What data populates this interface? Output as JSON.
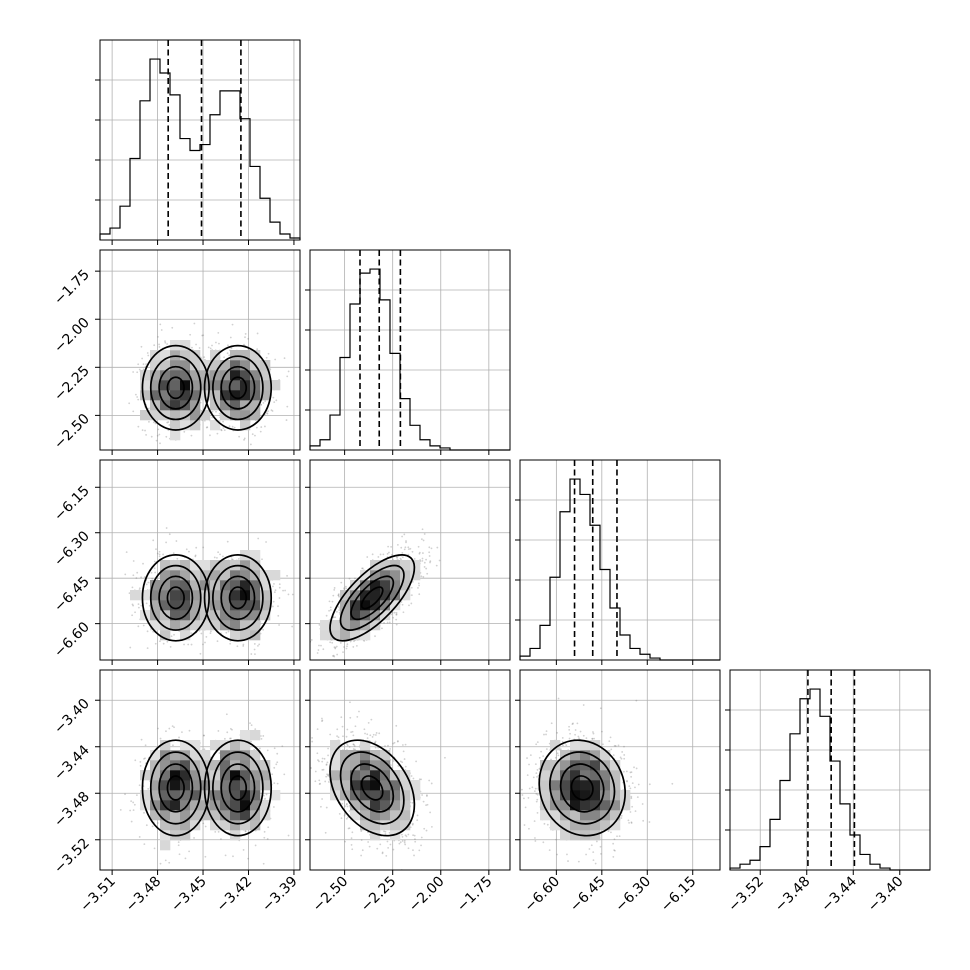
{
  "chart_data": {
    "type": "corner",
    "parameters": [
      {
        "range": [
          -3.518,
          -3.386
        ],
        "ticks": [
          -3.51,
          -3.48,
          -3.45,
          -3.42,
          -3.39
        ],
        "tick_labels": [
          "−3.51",
          "−3.48",
          "−3.45",
          "−3.42",
          "−3.39"
        ],
        "quantiles": [
          -3.473,
          -3.451,
          -3.425
        ],
        "bimodal": true,
        "modes": [
          [
            -3.468,
            0.011
          ],
          [
            -3.427,
            0.011
          ]
        ],
        "hist_bin_edges": [
          -3.518,
          -3.5114,
          -3.5048,
          -3.4982,
          -3.4916,
          -3.485,
          -3.4784,
          -3.4718,
          -3.4652,
          -3.4586,
          -3.452,
          -3.4454,
          -3.4388,
          -3.4322,
          -3.4256,
          -3.419,
          -3.4124,
          -3.4058,
          -3.3992,
          -3.3926,
          -3.386
        ],
        "hist_counts": [
          0.03,
          0.06,
          0.17,
          0.41,
          0.7,
          0.91,
          0.84,
          0.73,
          0.51,
          0.45,
          0.48,
          0.63,
          0.75,
          0.75,
          0.61,
          0.37,
          0.21,
          0.09,
          0.03,
          0.01
        ]
      },
      {
        "range": [
          -2.68,
          -1.64
        ],
        "ticks": [
          -2.5,
          -2.25,
          -2.0,
          -1.75
        ],
        "tick_labels": [
          "−2.50",
          "−2.25",
          "−2.00",
          "−1.75"
        ],
        "quantiles": [
          -2.42,
          -2.32,
          -2.21
        ],
        "hist_bin_edges": [
          -2.68,
          -2.628,
          -2.576,
          -2.524,
          -2.472,
          -2.42,
          -2.368,
          -2.316,
          -2.264,
          -2.212,
          -2.16,
          -2.108,
          -2.056,
          -2.004,
          -1.952,
          -1.9,
          -1.848,
          -1.796,
          -1.744,
          -1.692,
          -1.64
        ],
        "hist_counts": [
          0.02,
          0.05,
          0.17,
          0.45,
          0.71,
          0.86,
          0.88,
          0.73,
          0.47,
          0.25,
          0.12,
          0.05,
          0.02,
          0.01,
          0.0,
          0.0,
          0.0,
          0.0,
          0.0,
          0.0
        ]
      },
      {
        "range": [
          -6.72,
          -6.06
        ],
        "ticks": [
          -6.6,
          -6.45,
          -6.3,
          -6.15
        ],
        "tick_labels": [
          "−6.60",
          "−6.45",
          "−6.30",
          "−6.15"
        ],
        "quantiles": [
          -6.54,
          -6.48,
          -6.4
        ],
        "hist_bin_edges": [
          -6.72,
          -6.687,
          -6.654,
          -6.621,
          -6.588,
          -6.555,
          -6.522,
          -6.489,
          -6.456,
          -6.423,
          -6.39,
          -6.357,
          -6.324,
          -6.291,
          -6.258,
          -6.225,
          -6.192,
          -6.159,
          -6.126,
          -6.093,
          -6.06
        ],
        "hist_counts": [
          0.02,
          0.06,
          0.18,
          0.43,
          0.77,
          0.94,
          0.86,
          0.7,
          0.47,
          0.27,
          0.13,
          0.06,
          0.03,
          0.01,
          0.0,
          0.0,
          0.0,
          0.0,
          0.0,
          0.0
        ]
      },
      {
        "range": [
          -3.546,
          -3.374
        ],
        "ticks": [
          -3.52,
          -3.48,
          -3.44,
          -3.4
        ],
        "tick_labels": [
          "−3.52",
          "−3.48",
          "−3.44",
          "−3.40"
        ],
        "quantiles": [
          -3.479,
          -3.459,
          -3.439
        ],
        "hist_bin_edges": [
          -3.546,
          -3.5374,
          -3.5288,
          -3.5202,
          -3.5116,
          -3.503,
          -3.4944,
          -3.4858,
          -3.4772,
          -3.4686,
          -3.46,
          -3.4514,
          -3.4428,
          -3.4342,
          -3.4256,
          -3.417,
          -3.4084,
          -3.3998,
          -3.3912,
          -3.3826,
          -3.374
        ],
        "hist_counts": [
          0.01,
          0.03,
          0.05,
          0.12,
          0.26,
          0.46,
          0.7,
          0.88,
          0.93,
          0.79,
          0.56,
          0.34,
          0.18,
          0.08,
          0.03,
          0.01,
          0.0,
          0.0,
          0.0,
          0.0
        ]
      }
    ],
    "correlations": {
      "1-0": 0.0,
      "2-0": 0.0,
      "2-1": 0.7,
      "3-0": 0.0,
      "3-1": -0.35,
      "3-2": -0.1
    }
  }
}
